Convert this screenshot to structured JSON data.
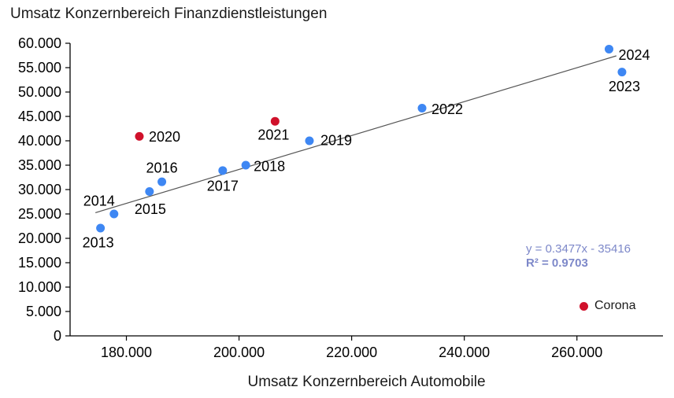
{
  "title": "Umsatz Konzernbereich Finanzdienstleistungen",
  "x_axis_label": "Umsatz Konzernbereich Automobile",
  "equation": {
    "line1": "y = 0.3477x - 35416",
    "line2": "R² = 0.9703"
  },
  "legend": {
    "corona_label": "Corona"
  },
  "colors": {
    "point_blue": "#3e87f3",
    "point_red": "#d0112b",
    "trendline": "#555555",
    "axis": "#000000",
    "equation_text": "#7d88c9",
    "label_text": "#000000"
  },
  "chart_data": {
    "type": "scatter",
    "title": "Umsatz Konzernbereich Finanzdienstleistungen",
    "xlabel": "Umsatz Konzernbereich Automobile",
    "ylabel": "Umsatz Konzernbereich Finanzdienstleistungen",
    "xlim": [
      170000,
      275000
    ],
    "ylim": [
      0,
      60000
    ],
    "grid": false,
    "legend_position": "bottom-right",
    "x_ticks": [
      {
        "value": 180000,
        "label": "180.000"
      },
      {
        "value": 200000,
        "label": "200.000"
      },
      {
        "value": 220000,
        "label": "220.000"
      },
      {
        "value": 240000,
        "label": "240.000"
      },
      {
        "value": 260000,
        "label": "260.000"
      }
    ],
    "y_ticks": [
      {
        "value": 0,
        "label": "0"
      },
      {
        "value": 5000,
        "label": "5.000"
      },
      {
        "value": 10000,
        "label": "10.000"
      },
      {
        "value": 15000,
        "label": "15.000"
      },
      {
        "value": 20000,
        "label": "20.000"
      },
      {
        "value": 25000,
        "label": "25.000"
      },
      {
        "value": 30000,
        "label": "30.000"
      },
      {
        "value": 35000,
        "label": "35.000"
      },
      {
        "value": 40000,
        "label": "40.000"
      },
      {
        "value": 45000,
        "label": "45.000"
      },
      {
        "value": 50000,
        "label": "50.000"
      },
      {
        "value": 55000,
        "label": "55.000"
      },
      {
        "value": 60000,
        "label": "60.000"
      }
    ],
    "trendline": {
      "equation": "y = 0.3477x - 35416",
      "r2": 0.9703,
      "slope": 0.3477,
      "intercept": -35416,
      "x_range": [
        174500,
        267000
      ]
    },
    "points": [
      {
        "year": "2013",
        "x": 175400,
        "y": 22100,
        "group": "normal",
        "label_offset": [
          -3,
          18
        ]
      },
      {
        "year": "2014",
        "x": 177800,
        "y": 25000,
        "group": "normal",
        "label_offset": [
          -19,
          -17
        ]
      },
      {
        "year": "2015",
        "x": 184100,
        "y": 29600,
        "group": "normal",
        "label_offset": [
          1,
          22
        ]
      },
      {
        "year": "2016",
        "x": 186300,
        "y": 31600,
        "group": "normal",
        "label_offset": [
          0,
          -18
        ]
      },
      {
        "year": "2017",
        "x": 197100,
        "y": 33900,
        "group": "normal",
        "label_offset": [
          0,
          19
        ]
      },
      {
        "year": "2018",
        "x": 201200,
        "y": 35000,
        "group": "normal",
        "label_offset": [
          30,
          1
        ]
      },
      {
        "year": "2019",
        "x": 212500,
        "y": 40000,
        "group": "normal",
        "label_offset": [
          34,
          -1
        ]
      },
      {
        "year": "2020",
        "x": 182300,
        "y": 40900,
        "group": "corona",
        "label_offset": [
          32,
          0
        ]
      },
      {
        "year": "2021",
        "x": 206400,
        "y": 44000,
        "group": "corona",
        "label_offset": [
          -2,
          17
        ]
      },
      {
        "year": "2022",
        "x": 232500,
        "y": 46700,
        "group": "normal",
        "label_offset": [
          32,
          1
        ]
      },
      {
        "year": "2023",
        "x": 268000,
        "y": 54100,
        "group": "normal",
        "label_offset": [
          3,
          18
        ]
      },
      {
        "year": "2024",
        "x": 265700,
        "y": 58800,
        "group": "normal",
        "label_offset": [
          32,
          7
        ]
      }
    ]
  }
}
